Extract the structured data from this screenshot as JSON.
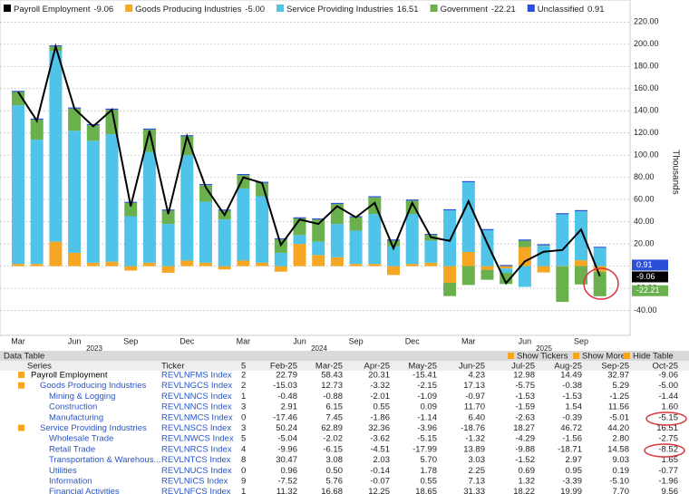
{
  "chart_data": {
    "type": "bar",
    "categories": [
      "Mar",
      null,
      null,
      "Jun",
      null,
      null,
      "Sep",
      null,
      null,
      "Dec",
      null,
      null,
      "Mar",
      null,
      null,
      "Jun",
      null,
      null,
      "Sep",
      null,
      null,
      "Dec",
      null,
      null,
      "Mar",
      null,
      null,
      "Jun",
      null,
      null,
      "Sep",
      null
    ],
    "year_labels": [
      "2023",
      "2024",
      "2025"
    ],
    "series": [
      {
        "name": "Payroll Employment",
        "color": "#000000",
        "kind": "line",
        "right_tag": true,
        "last_label": "-9.06",
        "values": [
          157,
          131,
          198,
          142,
          126,
          141,
          54,
          122,
          47,
          117,
          71,
          46,
          80,
          75,
          19,
          42,
          38,
          54,
          44,
          57,
          16,
          57,
          26,
          22.79,
          58.43,
          20.31,
          -15.41,
          4.23,
          12.98,
          14.49,
          32.97,
          -9.06
        ]
      },
      {
        "name": "Goods Producing Industries",
        "color": "#f5a623",
        "kind": "bar",
        "last_label": "-5.00",
        "values": [
          2,
          2,
          22,
          12,
          3,
          4,
          -4,
          3,
          -6,
          5,
          3,
          -3,
          5,
          3,
          -5,
          20,
          10,
          8,
          2,
          2,
          -8,
          2,
          3,
          -15.03,
          12.73,
          -3.32,
          -2.15,
          17.13,
          -5.75,
          -0.38,
          5.29,
          -5.0
        ]
      },
      {
        "name": "Service Providing Industries",
        "color": "#4fc3e8",
        "kind": "bar",
        "last_label": "16.51",
        "values": [
          143,
          112,
          172,
          110,
          110,
          115,
          45,
          100,
          38,
          95,
          55,
          42,
          65,
          60,
          12,
          8,
          12,
          30,
          30,
          45,
          18,
          45,
          20,
          50.24,
          62.89,
          32.36,
          -3.96,
          -18.76,
          18.27,
          46.72,
          44.2,
          16.51
        ]
      },
      {
        "name": "Government",
        "color": "#6ab04c",
        "kind": "bar",
        "right_tag": true,
        "last_label": "-22.21",
        "values": [
          12,
          18,
          4,
          20,
          14,
          22,
          12,
          20,
          12,
          17,
          15,
          8,
          12,
          12,
          12,
          15,
          20,
          18,
          12,
          15,
          5,
          12,
          5,
          -12,
          -17,
          -9,
          -10,
          5.86,
          0.46,
          -31.85,
          -16.52,
          -22.21
        ]
      },
      {
        "name": "Unclassified",
        "color": "#2b4fd6",
        "kind": "bar",
        "right_tag": true,
        "last_label": "0.91",
        "values": [
          1,
          1,
          1,
          1,
          1,
          1,
          1,
          1,
          1,
          1,
          1,
          1,
          1,
          1,
          1,
          1,
          1,
          1,
          1,
          1,
          1,
          1,
          1,
          1,
          1,
          1,
          1,
          1,
          1,
          1,
          1,
          0.91
        ]
      }
    ],
    "y_axis_label": "Thousands",
    "ylim": [
      -60,
      235
    ],
    "yticks": [
      {
        "value": 220,
        "label": "220.00"
      },
      {
        "value": 200,
        "label": "200.00"
      },
      {
        "value": 180,
        "label": "180.00"
      },
      {
        "value": 160,
        "label": "160.00"
      },
      {
        "value": 140,
        "label": "140.00"
      },
      {
        "value": 120,
        "label": "120.00"
      },
      {
        "value": 100,
        "label": "100.00"
      },
      {
        "value": 80,
        "label": "80.00"
      },
      {
        "value": 60,
        "label": "60.00"
      },
      {
        "value": 40,
        "label": "40.00"
      },
      {
        "value": 20,
        "label": "20.00"
      },
      {
        "value": 0,
        "label": "0.00"
      },
      {
        "value": -20,
        "label": "-20.00"
      },
      {
        "value": -40,
        "label": "-40.00"
      }
    ],
    "grid": true
  },
  "table": {
    "title": "Data Table",
    "controls": [
      "Show Tickers",
      "Show More",
      "Hide Table"
    ],
    "columns": [
      "Series",
      "Ticker",
      "5",
      "Feb-25",
      "Mar-25",
      "Apr-25",
      "May-25",
      "Jun-25",
      "Jul-25",
      "Aug-25",
      "Sep-25",
      "Oct-25"
    ],
    "rows": [
      [
        "Payroll Employment",
        "REVLNFMS Index",
        "2",
        "22.79",
        "58.43",
        "20.31",
        "-15.41",
        "4.23",
        "12.98",
        "14.49",
        "32.97",
        "-9.06"
      ],
      [
        "Goods Producing Industries",
        "REVLNGCS Index",
        "2",
        "-15.03",
        "12.73",
        "-3.32",
        "-2.15",
        "17.13",
        "-5.75",
        "-0.38",
        "5.29",
        "-5.00"
      ],
      [
        "Mining & Logging",
        "REVLNNCS Index",
        "1",
        "-0.48",
        "-0.88",
        "-2.01",
        "-1.09",
        "-0.97",
        "-1.53",
        "-1.53",
        "-1.25",
        "-1.44"
      ],
      [
        "Construction",
        "REVLNNCS Index",
        "3",
        "2.91",
        "6.15",
        "0.55",
        "0.09",
        "11.70",
        "-1.59",
        "1.54",
        "11.56",
        "1.60"
      ],
      [
        "Manufacturing",
        "REVLNMCS Index",
        "0",
        "-17.46",
        "7.45",
        "-1.86",
        "-1.14",
        "6.40",
        "-2.63",
        "-0.39",
        "-5.01",
        "-5.15"
      ],
      [
        "Service Providing Industries",
        "REVLNSCS Index",
        "3",
        "50.24",
        "62.89",
        "32.36",
        "-3.96",
        "-18.76",
        "18.27",
        "46.72",
        "44.20",
        "16.51"
      ],
      [
        "Wholesale Trade",
        "REVLNWCS Index",
        "5",
        "-5.04",
        "-2.02",
        "-3.62",
        "-5.15",
        "-1.32",
        "-4.29",
        "-1.56",
        "2.80",
        "-2.75"
      ],
      [
        "Retail Trade",
        "REVLNRCS Index",
        "4",
        "-9.96",
        "-6.15",
        "-4.51",
        "-17.99",
        "13.89",
        "-9.88",
        "-18.71",
        "14.58",
        "-8.52"
      ],
      [
        "Transportation & Warehous...",
        "REVLNTCS Index",
        "8",
        "30.47",
        "3.08",
        "2.03",
        "5.70",
        "3.03",
        "-1.52",
        "2.97",
        "9.03",
        "1.65"
      ],
      [
        "Utilities",
        "REVLNUCS Index",
        "0",
        "0.96",
        "0.50",
        "-0.14",
        "1.78",
        "2.25",
        "0.69",
        "0.95",
        "0.19",
        "-0.77"
      ],
      [
        "Information",
        "REVLNICS Index",
        "9",
        "-7.52",
        "5.76",
        "-0.07",
        "0.55",
        "7.13",
        "1.32",
        "-3.39",
        "-5.10",
        "-1.96"
      ],
      [
        "Financial Activities",
        "REVLNFCS Index",
        "1",
        "11.32",
        "16.68",
        "12.25",
        "18.65",
        "31.33",
        "18.22",
        "19.99",
        "7.70",
        "9.56"
      ]
    ]
  }
}
